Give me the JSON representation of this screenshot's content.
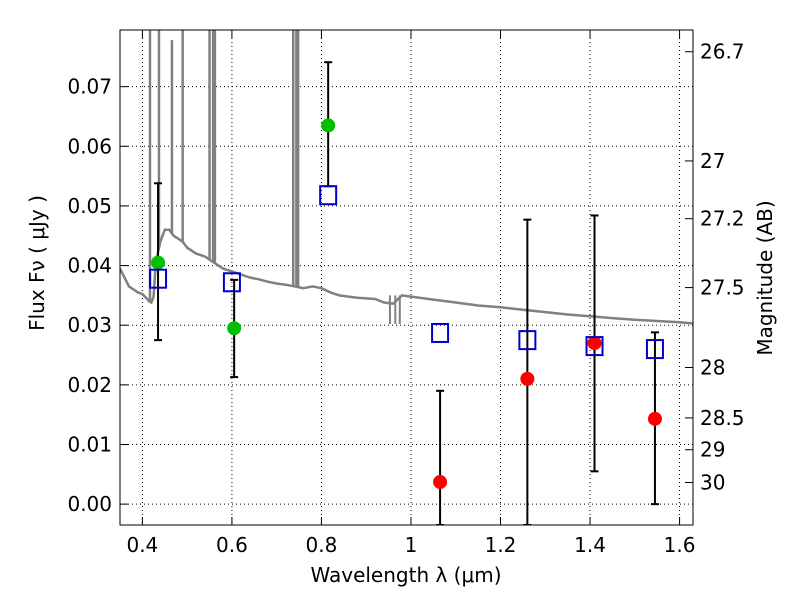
{
  "chart_data": {
    "type": "scatter",
    "xlabel": "Wavelength  λ (μm)",
    "ylabel": "Flux  Fν ( μJy )",
    "ylabel_right": "Magnitude (AB)",
    "xlim": [
      0.35,
      1.63
    ],
    "ylim": [
      -0.0035,
      0.0795
    ],
    "x_ticks": [
      {
        "value": 0.4,
        "label": "0.4"
      },
      {
        "value": 0.6,
        "label": "0.6"
      },
      {
        "value": 0.8,
        "label": "0.8"
      },
      {
        "value": 1.0,
        "label": "1"
      },
      {
        "value": 1.2,
        "label": "1.2"
      },
      {
        "value": 1.4,
        "label": "1.4"
      },
      {
        "value": 1.6,
        "label": "1.6"
      }
    ],
    "y_ticks": [
      {
        "value": 0.0,
        "label": "0.00"
      },
      {
        "value": 0.01,
        "label": "0.01"
      },
      {
        "value": 0.02,
        "label": "0.02"
      },
      {
        "value": 0.03,
        "label": "0.03"
      },
      {
        "value": 0.04,
        "label": "0.04"
      },
      {
        "value": 0.05,
        "label": "0.05"
      },
      {
        "value": 0.06,
        "label": "0.06"
      },
      {
        "value": 0.07,
        "label": "0.07"
      }
    ],
    "right_ticks": [
      {
        "value": 26.7,
        "label": "26.7"
      },
      {
        "value": 27.0,
        "label": "27"
      },
      {
        "value": 27.2,
        "label": "27.2"
      },
      {
        "value": 27.5,
        "label": "27.5"
      },
      {
        "value": 28.0,
        "label": "28"
      },
      {
        "value": 28.5,
        "label": "28.5"
      },
      {
        "value": 29.0,
        "label": "29"
      },
      {
        "value": 30.0,
        "label": "30"
      }
    ],
    "grid": true,
    "colors": {
      "model_sed": "#808080",
      "detections": "#00c000",
      "non_detections": "#ff0000",
      "model_photometry": "#0000cc",
      "error_bars": "#000000"
    },
    "series": [
      {
        "kind": "line",
        "color": "#808080",
        "x": [
          0.35,
          0.36,
          0.37,
          0.38,
          0.39,
          0.4,
          0.41,
          0.415,
          0.42,
          0.425,
          0.43,
          0.44,
          0.45,
          0.46,
          0.47,
          0.48,
          0.49,
          0.5,
          0.52,
          0.54,
          0.56,
          0.58,
          0.6,
          0.62,
          0.64,
          0.66,
          0.68,
          0.7,
          0.72,
          0.74,
          0.76,
          0.78,
          0.8,
          0.82,
          0.84,
          0.86,
          0.88,
          0.9,
          0.92,
          0.94,
          0.96,
          0.98,
          1.0,
          1.05,
          1.1,
          1.15,
          1.2,
          1.25,
          1.3,
          1.35,
          1.4,
          1.45,
          1.5,
          1.55,
          1.6,
          1.63
        ],
        "y": [
          0.0395,
          0.038,
          0.0365,
          0.036,
          0.0355,
          0.0352,
          0.0345,
          0.034,
          0.0338,
          0.0348,
          0.0405,
          0.044,
          0.046,
          0.046,
          0.045,
          0.0445,
          0.044,
          0.043,
          0.042,
          0.0415,
          0.0405,
          0.0395,
          0.039,
          0.0385,
          0.038,
          0.0377,
          0.0373,
          0.037,
          0.0368,
          0.0365,
          0.0362,
          0.0365,
          0.0362,
          0.0355,
          0.035,
          0.0348,
          0.0346,
          0.0345,
          0.0344,
          0.0338,
          0.0336,
          0.035,
          0.0348,
          0.0343,
          0.0338,
          0.0333,
          0.033,
          0.0326,
          0.0322,
          0.0318,
          0.0315,
          0.0312,
          0.0309,
          0.0307,
          0.0305,
          0.0303
        ]
      },
      {
        "kind": "spikes",
        "color": "#808080",
        "x": [
          0.417,
          0.437,
          0.466,
          0.49,
          0.55,
          0.558,
          0.562,
          0.737,
          0.744,
          0.748
        ],
        "y_top": [
          0.0795,
          0.0795,
          0.0778,
          0.0795,
          0.0795,
          0.0795,
          0.0795,
          0.0795,
          0.0795,
          0.0795
        ]
      },
      {
        "kind": "spikes-down",
        "color": "#808080",
        "x": [
          0.953,
          0.965,
          0.975
        ],
        "y_bottom": [
          0.0302,
          0.0302,
          0.0302
        ]
      },
      {
        "kind": "points",
        "color": "#00c000",
        "marker": "circle",
        "x": [
          0.435,
          0.605,
          0.815
        ],
        "y": [
          0.0405,
          0.0295,
          0.0635
        ],
        "yerr_low": [
          0.0275,
          0.0213,
          0.0533
        ],
        "yerr_high": [
          0.0538,
          0.0376,
          0.0741
        ]
      },
      {
        "kind": "points",
        "color": "#ff0000",
        "marker": "circle",
        "x": [
          1.065,
          1.26,
          1.41,
          1.545
        ],
        "y": [
          0.0037,
          0.021,
          0.027,
          0.0143
        ],
        "yerr_low": [
          -0.0035,
          -0.0035,
          0.0055,
          0.0
        ],
        "yerr_high": [
          0.019,
          0.0477,
          0.0484,
          0.0288
        ]
      },
      {
        "kind": "points",
        "color": "#0000cc",
        "marker": "open-square",
        "x": [
          0.435,
          0.6,
          0.815,
          1.065,
          1.26,
          1.41,
          1.545
        ],
        "y": [
          0.0378,
          0.0372,
          0.0518,
          0.0287,
          0.0275,
          0.0265,
          0.026
        ]
      }
    ]
  }
}
